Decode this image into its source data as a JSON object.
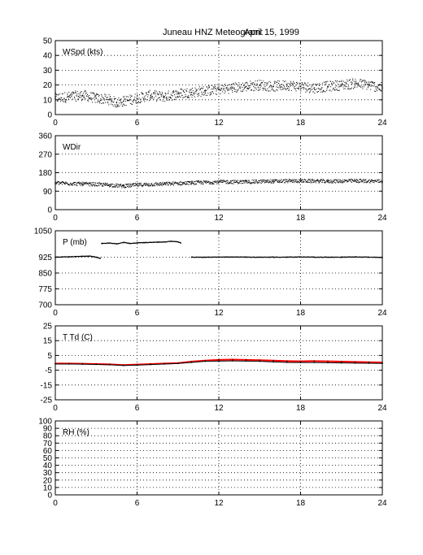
{
  "title": {
    "station": "Juneau HNZ Meteogram:",
    "date": "April 15, 1999"
  },
  "colors": {
    "axis": "#000000",
    "grid": "#000000",
    "data": "#000000",
    "temperature_line": "#ff0000"
  },
  "chart_data": [
    {
      "type": "scatter",
      "label": "WSpd (kts)",
      "xlim": [
        0,
        24
      ],
      "ylim": [
        0,
        50
      ],
      "xticks": [
        0,
        6,
        12,
        18,
        24
      ],
      "yticks": [
        0,
        10,
        20,
        30,
        40,
        50
      ],
      "grid": true,
      "series": [
        {
          "x": [
            0,
            1,
            2,
            3,
            4,
            4.5,
            5,
            6,
            7,
            8,
            9,
            10,
            11,
            12,
            13,
            14,
            15,
            16,
            17,
            18,
            19,
            20,
            21,
            22,
            23,
            24
          ],
          "y": [
            11,
            12,
            13,
            11,
            10,
            8,
            9,
            11,
            13,
            12,
            14,
            15,
            16,
            17,
            18,
            19,
            20,
            19,
            20,
            19,
            18,
            19,
            20,
            21,
            20,
            18
          ]
        }
      ]
    },
    {
      "type": "scatter",
      "label": "WDir",
      "xlim": [
        0,
        24
      ],
      "ylim": [
        0,
        360
      ],
      "xticks": [
        0,
        6,
        12,
        18,
        24
      ],
      "yticks": [
        0,
        90,
        180,
        270,
        360
      ],
      "grid": true,
      "series": [
        {
          "x": [
            0,
            2,
            4,
            5,
            6,
            8,
            10,
            12,
            14,
            16,
            18,
            20,
            22,
            24
          ],
          "y": [
            130,
            125,
            120,
            115,
            120,
            125,
            130,
            135,
            135,
            138,
            140,
            138,
            140,
            138
          ]
        }
      ]
    },
    {
      "type": "scatter",
      "label": "P (mb)",
      "xlim": [
        0,
        24
      ],
      "ylim": [
        700,
        1050
      ],
      "xticks": [
        0,
        6,
        12,
        18,
        24
      ],
      "yticks": [
        700,
        775,
        850,
        925,
        1050
      ],
      "grid": true,
      "series": [
        {
          "x": [
            0,
            0.5,
            1,
            1.5,
            2,
            2.5,
            3,
            3.3
          ],
          "y": [
            925,
            926,
            927,
            928,
            929,
            930,
            925,
            920
          ]
        },
        {
          "x": [
            3.4,
            4,
            4.5,
            5,
            5.5,
            6,
            6.5,
            7,
            7.5,
            8,
            8.5,
            9,
            9.2
          ],
          "y": [
            990,
            992,
            988,
            995,
            990,
            993,
            994,
            995,
            996,
            997,
            1000,
            998,
            992
          ]
        },
        {
          "x": [
            10,
            11,
            12,
            13,
            14,
            15,
            16,
            17,
            18,
            19,
            20,
            21,
            22,
            23,
            24
          ],
          "y": [
            925,
            925,
            925,
            926,
            925,
            925,
            925,
            925,
            926,
            925,
            925,
            925,
            926,
            925,
            924
          ]
        }
      ]
    },
    {
      "type": "line",
      "label": "T Td (C)",
      "xlim": [
        0,
        24
      ],
      "ylim": [
        -25,
        25
      ],
      "xticks": [
        0,
        6,
        12,
        18,
        24
      ],
      "yticks": [
        -25,
        -15,
        -5,
        5,
        15,
        25
      ],
      "grid": true,
      "series": [
        {
          "x": [
            0,
            1,
            2,
            3,
            4,
            5,
            6,
            7,
            8,
            9,
            10,
            11,
            12,
            13,
            14,
            15,
            16,
            17,
            18,
            19,
            20,
            21,
            22,
            23,
            24
          ],
          "y": [
            -0.5,
            -0.5,
            -0.6,
            -0.8,
            -1.0,
            -1.5,
            -1.2,
            -0.8,
            -0.5,
            -0.2,
            0.8,
            1.5,
            2.0,
            2.2,
            2.0,
            1.8,
            1.5,
            1.2,
            1.0,
            1.2,
            1.0,
            0.8,
            0.6,
            0.4,
            0.2
          ]
        },
        {
          "x": [
            0,
            1,
            2,
            3,
            4,
            5,
            6,
            7,
            8,
            9,
            10,
            11,
            12,
            13,
            14,
            15,
            16,
            17,
            18,
            19,
            20,
            21,
            22,
            23,
            24
          ],
          "y": [
            -0.8,
            -0.8,
            -0.9,
            -1.1,
            -1.3,
            -1.8,
            -1.6,
            -1.2,
            -0.8,
            -0.4,
            0.3,
            1.0,
            1.2,
            1.3,
            1.2,
            1.0,
            0.6,
            0.3,
            0.2,
            0.2,
            0.1,
            -0.1,
            -0.2,
            -0.3,
            -0.4
          ]
        }
      ]
    },
    {
      "type": "scatter",
      "label": "RH (%)",
      "xlim": [
        0,
        24
      ],
      "ylim": [
        0,
        100
      ],
      "xticks": [
        0,
        6,
        12,
        18,
        24
      ],
      "yticks": [
        0,
        10,
        20,
        30,
        40,
        50,
        60,
        70,
        80,
        90,
        100
      ],
      "grid": true,
      "series": []
    }
  ]
}
